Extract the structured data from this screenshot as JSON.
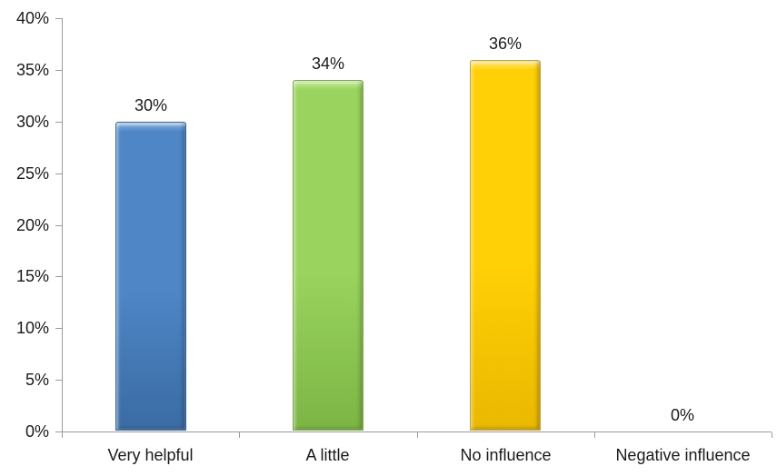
{
  "chart_data": {
    "type": "bar",
    "title": "",
    "xlabel": "",
    "ylabel": "",
    "categories": [
      "Very helpful",
      "A little",
      "No influence",
      "Negative influence"
    ],
    "values": [
      30,
      34,
      36,
      0
    ],
    "data_labels": [
      "30%",
      "34%",
      "36%",
      "0%"
    ],
    "y_tick_labels": [
      "0%",
      "5%",
      "10%",
      "15%",
      "20%",
      "25%",
      "30%",
      "35%",
      "40%"
    ],
    "y_tick_values": [
      0,
      5,
      10,
      15,
      20,
      25,
      30,
      35,
      40
    ],
    "ylim": [
      0,
      40
    ],
    "grid": false,
    "legend": "none",
    "bar_colors": [
      {
        "top": "#8ab4e0",
        "mid": "#4e86c6",
        "bottom": "#3a6ba3",
        "edge": "#3465a0"
      },
      {
        "top": "#c6ea96",
        "mid": "#9ad45e",
        "bottom": "#7cb544",
        "edge": "#77ad3c"
      },
      {
        "top": "#ffe97a",
        "mid": "#ffd006",
        "bottom": "#eab800",
        "edge": "#c9a227"
      },
      null
    ],
    "axis_color": "#9a9a9a",
    "text_color": "#1a1a1a",
    "background_color": "#ffffff"
  }
}
